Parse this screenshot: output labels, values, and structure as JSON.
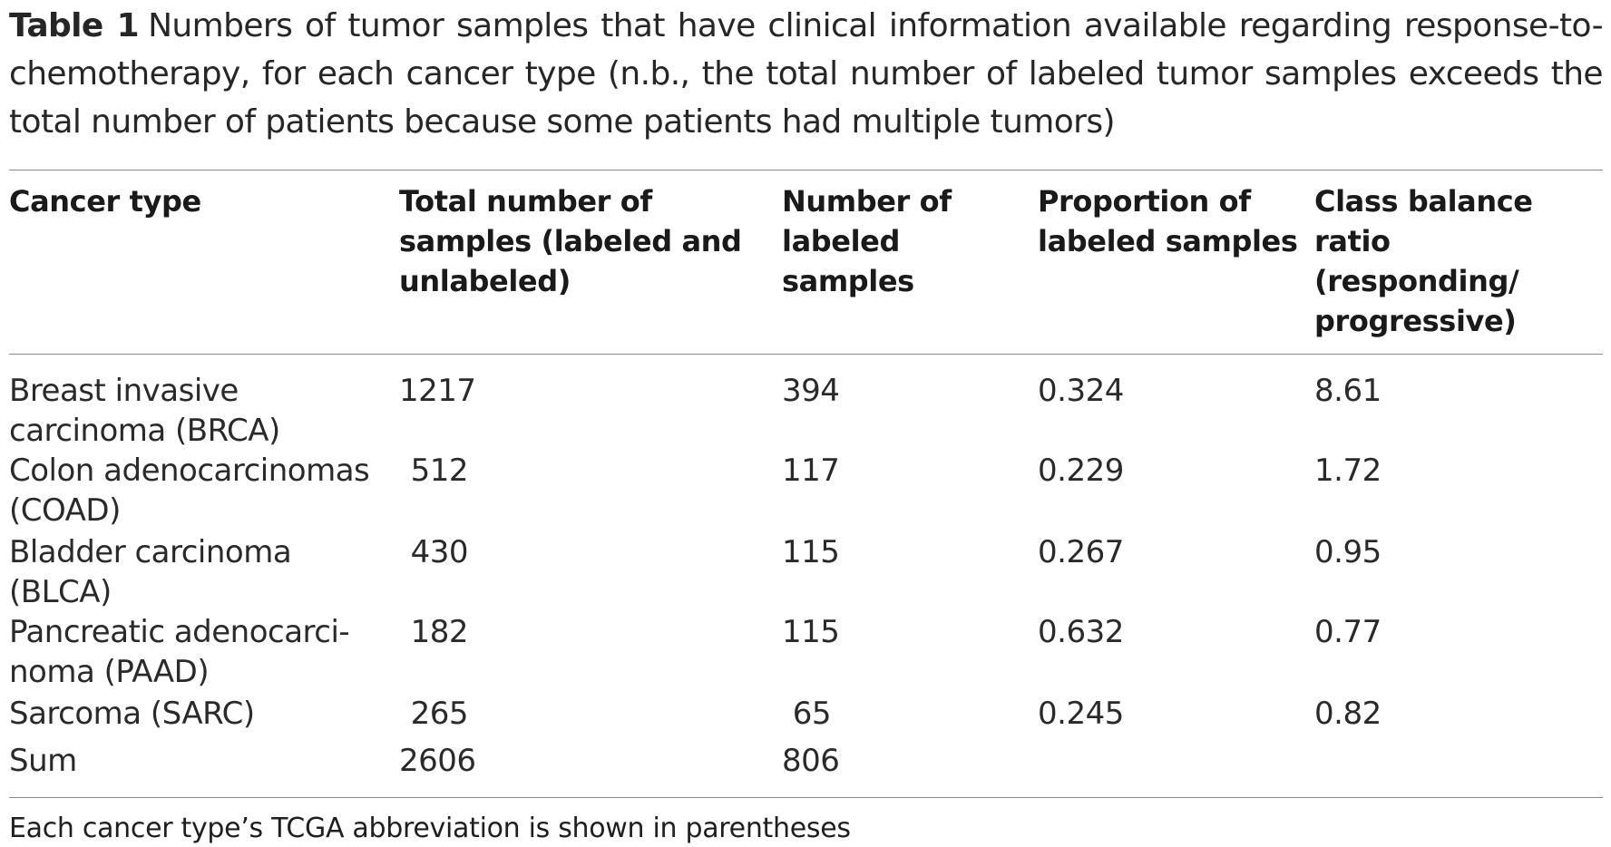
{
  "caption": {
    "label": "Table 1",
    "text": "Numbers of tumor samples that have clinical information available regarding response-to-chemotherapy, for each cancer type (n.b., the total number of labeled tumor samples exceeds the total number of patients because some patients had multiple tumors)"
  },
  "columns": [
    "Cancer type",
    "Total number of samples (labeled and unlabeled)",
    "Number of labeled samples",
    "Proportion of labeled samples",
    "Class balance ratio (responding/ progressive)"
  ],
  "rows": [
    {
      "cancer_type": "Breast invasive carcinoma (BRCA)",
      "total": "1217",
      "labeled": "394",
      "proportion": "0.324",
      "ratio": "8.61"
    },
    {
      "cancer_type": "Colon adenocarcinomas (COAD)",
      "total": "512",
      "labeled": "117",
      "proportion": "0.229",
      "ratio": "1.72"
    },
    {
      "cancer_type": "Bladder carcinoma (BLCA)",
      "total": "430",
      "labeled": "115",
      "proportion": "0.267",
      "ratio": "0.95"
    },
    {
      "cancer_type": "Pancreatic adenocarci-noma (PAAD)",
      "total": "182",
      "labeled": "115",
      "proportion": "0.632",
      "ratio": "0.77"
    },
    {
      "cancer_type": "Sarcoma (SARC)",
      "total": "265",
      "labeled": "65",
      "proportion": "0.245",
      "ratio": "0.82"
    },
    {
      "cancer_type": "Sum",
      "total": "2606",
      "labeled": "806",
      "proportion": "",
      "ratio": ""
    }
  ],
  "footnote": "Each cancer type’s TCGA abbreviation is shown in parentheses"
}
